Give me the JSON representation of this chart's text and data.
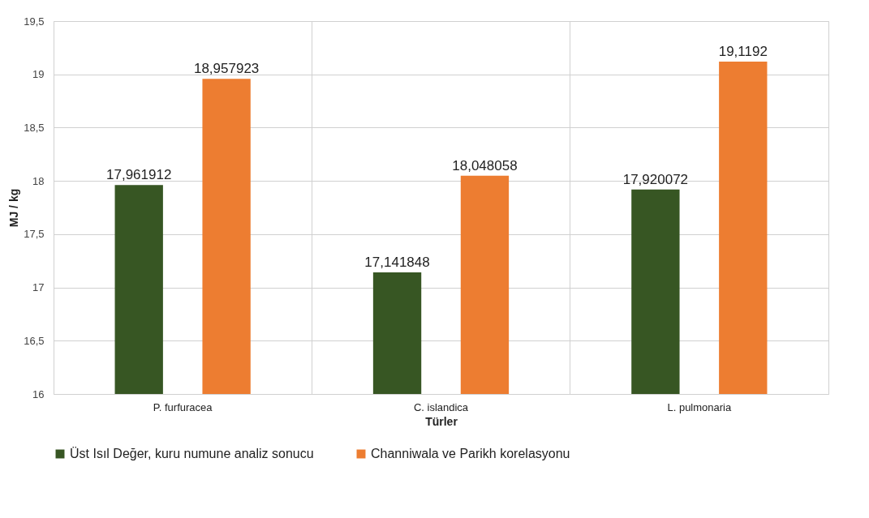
{
  "chart_data": {
    "type": "bar",
    "xlabel": "Türler",
    "ylabel": "MJ / kg",
    "categories": [
      "P. furfuracea",
      "C. islandica",
      "L. pulmonaria"
    ],
    "series": [
      {
        "name": "Üst Isıl Değer, kuru numune analiz sonucu",
        "color": "#375623",
        "values": [
          17.961912,
          17.141848,
          17.920072
        ],
        "value_labels": [
          "17,961912",
          "17,141848",
          "17,920072"
        ]
      },
      {
        "name": "Channiwala ve Parikh korelasyonu",
        "color": "#ed7d31",
        "values": [
          18.957923,
          18.048058,
          19.1192
        ],
        "value_labels": [
          "18,957923",
          "18,048058",
          "19,1192"
        ]
      }
    ],
    "ylim": [
      16,
      19.5
    ],
    "yticks": [
      16,
      {
        "value": 16.5,
        "label": "16,5"
      },
      17,
      {
        "value": 17.5,
        "label": "17,5"
      },
      18,
      {
        "value": 18.5,
        "label": "18,5"
      },
      19,
      {
        "value": 19.5,
        "label": "19,5"
      }
    ],
    "grid": true,
    "legend": "bottom"
  }
}
